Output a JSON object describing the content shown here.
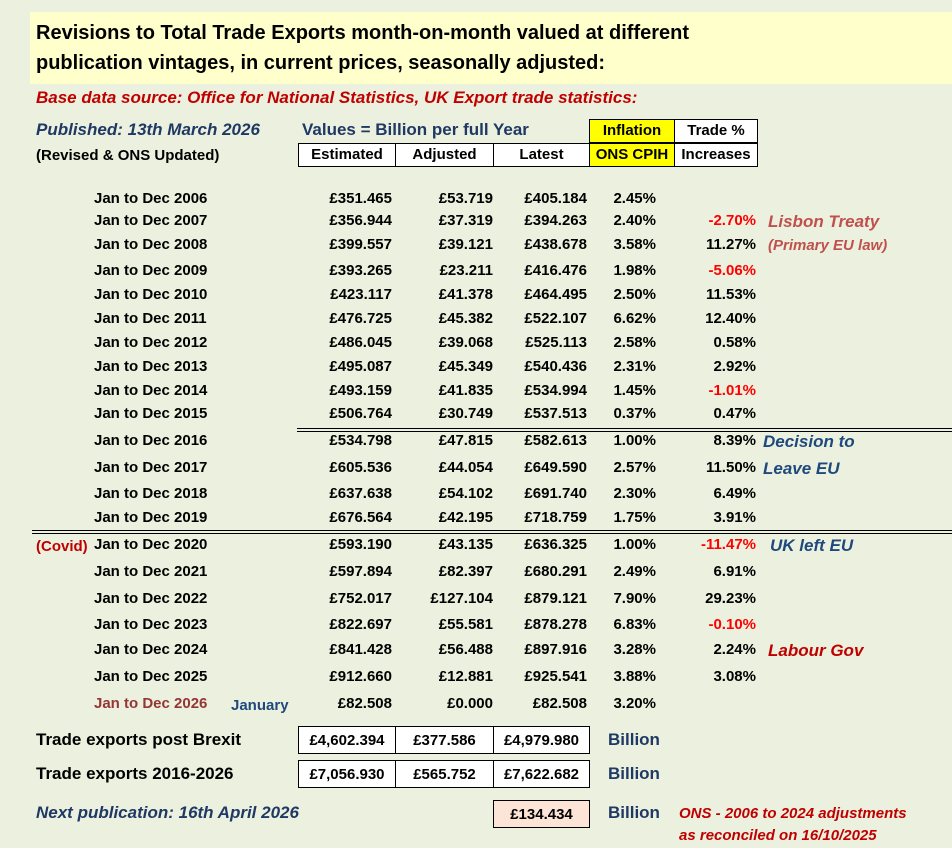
{
  "title": {
    "line1": "Revisions to Total Trade Exports month-on-month valued at different",
    "line2": "publication vintages, in current prices, seasonally adjusted:"
  },
  "source": "Base data source: Office for National Statistics, UK Export trade statistics:",
  "published": "Published: 13th March 2026",
  "revised": "(Revised & ONS Updated)",
  "values_note": "Values = Billion per full Year",
  "headers": {
    "estimated": "Estimated",
    "adjusted": "Adjusted",
    "latest": "Latest",
    "inflation_top": "Inflation",
    "inflation_bottom": "ONS CPIH",
    "trade_top": "Trade %",
    "trade_bottom": "Increases"
  },
  "rows": [
    {
      "label": "Jan to Dec 2006",
      "estimated": "£351.465",
      "adjusted": "£53.719",
      "latest": "£405.184",
      "inflation": "2.45%",
      "trade": ""
    },
    {
      "label": "Jan to Dec 2007",
      "estimated": "£356.944",
      "adjusted": "£37.319",
      "latest": "£394.263",
      "inflation": "2.40%",
      "trade": "-2.70%"
    },
    {
      "label": "Jan to Dec 2008",
      "estimated": "£399.557",
      "adjusted": "£39.121",
      "latest": "£438.678",
      "inflation": "3.58%",
      "trade": "11.27%"
    },
    {
      "label": "Jan to Dec 2009",
      "estimated": "£393.265",
      "adjusted": "£23.211",
      "latest": "£416.476",
      "inflation": "1.98%",
      "trade": "-5.06%"
    },
    {
      "label": "Jan to Dec 2010",
      "estimated": "£423.117",
      "adjusted": "£41.378",
      "latest": "£464.495",
      "inflation": "2.50%",
      "trade": "11.53%"
    },
    {
      "label": "Jan to Dec 2011",
      "estimated": "£476.725",
      "adjusted": "£45.382",
      "latest": "£522.107",
      "inflation": "6.62%",
      "trade": "12.40%"
    },
    {
      "label": "Jan to Dec 2012",
      "estimated": "£486.045",
      "adjusted": "£39.068",
      "latest": "£525.113",
      "inflation": "2.58%",
      "trade": "0.58%"
    },
    {
      "label": "Jan to Dec 2013",
      "estimated": "£495.087",
      "adjusted": "£45.349",
      "latest": "£540.436",
      "inflation": "2.31%",
      "trade": "2.92%"
    },
    {
      "label": "Jan to Dec 2014",
      "estimated": "£493.159",
      "adjusted": "£41.835",
      "latest": "£534.994",
      "inflation": "1.45%",
      "trade": "-1.01%"
    },
    {
      "label": "Jan to Dec 2015",
      "estimated": "£506.764",
      "adjusted": "£30.749",
      "latest": "£537.513",
      "inflation": "0.37%",
      "trade": "0.47%"
    },
    {
      "label": "Jan to Dec 2016",
      "estimated": "£534.798",
      "adjusted": "£47.815",
      "latest": "£582.613",
      "inflation": "1.00%",
      "trade": "8.39%"
    },
    {
      "label": "Jan to Dec 2017",
      "estimated": "£605.536",
      "adjusted": "£44.054",
      "latest": "£649.590",
      "inflation": "2.57%",
      "trade": "11.50%"
    },
    {
      "label": "Jan to Dec 2018",
      "estimated": "£637.638",
      "adjusted": "£54.102",
      "latest": "£691.740",
      "inflation": "2.30%",
      "trade": "6.49%"
    },
    {
      "label": "Jan to Dec 2019",
      "estimated": "£676.564",
      "adjusted": "£42.195",
      "latest": "£718.759",
      "inflation": "1.75%",
      "trade": "3.91%"
    },
    {
      "label": "Jan to Dec 2020",
      "estimated": "£593.190",
      "adjusted": "£43.135",
      "latest": "£636.325",
      "inflation": "1.00%",
      "trade": "-11.47%"
    },
    {
      "label": "Jan to Dec 2021",
      "estimated": "£597.894",
      "adjusted": "£82.397",
      "latest": "£680.291",
      "inflation": "2.49%",
      "trade": "6.91%"
    },
    {
      "label": "Jan to Dec 2022",
      "estimated": "£752.017",
      "adjusted": "£127.104",
      "latest": "£879.121",
      "inflation": "7.90%",
      "trade": "29.23%"
    },
    {
      "label": "Jan to Dec 2023",
      "estimated": "£822.697",
      "adjusted": "£55.581",
      "latest": "£878.278",
      "inflation": "6.83%",
      "trade": "-0.10%"
    },
    {
      "label": "Jan to Dec 2024",
      "estimated": "£841.428",
      "adjusted": "£56.488",
      "latest": "£897.916",
      "inflation": "3.28%",
      "trade": "2.24%"
    },
    {
      "label": "Jan to Dec 2025",
      "estimated": "£912.660",
      "adjusted": "£12.881",
      "latest": "£925.541",
      "inflation": "3.88%",
      "trade": "3.08%"
    },
    {
      "label": "Jan to Dec 2026",
      "estimated": "£82.508",
      "adjusted": "£0.000",
      "latest": "£82.508",
      "inflation": "3.20%",
      "trade": ""
    }
  ],
  "covid_note": "(Covid)",
  "month_note": "January",
  "annotations": {
    "lisbon": "Lisbon Treaty",
    "primary": "(Primary EU law)",
    "decision": "Decision to",
    "leave": "Leave EU",
    "uk_left": "UK left EU",
    "labour": "Labour Gov"
  },
  "summary": {
    "post_brexit": {
      "label": "Trade exports post Brexit",
      "estimated": "£4,602.394",
      "adjusted": "£377.586",
      "latest": "£4,979.980",
      "unit": "Billion"
    },
    "range": {
      "label": "Trade exports 2016-2026",
      "estimated": "£7,056.930",
      "adjusted": "£565.752",
      "latest": "£7,622.682",
      "unit": "Billion"
    }
  },
  "next_publication": "Next publication: 16th April 2026",
  "next_value": "£134.434",
  "next_unit": "Billion",
  "ons_note": {
    "line1": "ONS - 2006 to 2024 adjustments",
    "line2": "as reconciled on 16/10/2025"
  },
  "colors": {
    "background": "#ebf1de",
    "title_bg": "#ffffcc",
    "inflation_header": "#ffff00",
    "negative": "#ff0000",
    "annotation_red": "#c00000",
    "navy": "#1f3864",
    "next_box": "#fce4d6"
  }
}
